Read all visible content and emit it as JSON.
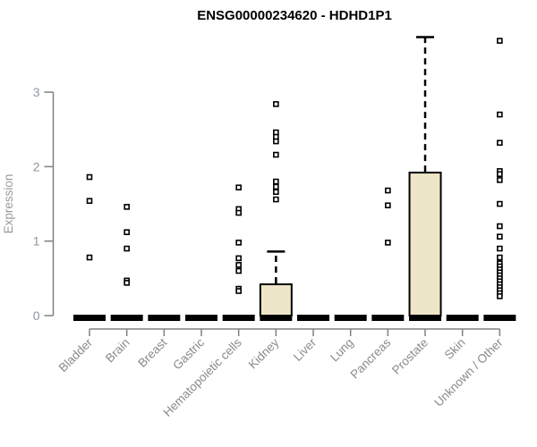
{
  "page": {
    "background": "#ffffff"
  },
  "chart_data": {
    "type": "boxplot",
    "title": "ENSG00000234620 - HDHD1P1",
    "ylabel": "Expression",
    "xlabel": "",
    "yticks": [
      0,
      1,
      2,
      3
    ],
    "ylim": [
      0,
      3.9
    ],
    "grid": "off",
    "legend": "none",
    "categories": [
      "Bladder",
      "Brain",
      "Breast",
      "Gastric",
      "Hematopoietic cells",
      "Kidney",
      "Liver",
      "Lung",
      "Pancreas",
      "Prostate",
      "Skin",
      "Unknown / Other"
    ],
    "series": [
      {
        "name": "Bladder",
        "median": 0,
        "q1": 0,
        "q3": 0,
        "whisker_low": 0,
        "whisker_high": 0,
        "outliers": [
          1.86,
          1.54,
          0.78
        ]
      },
      {
        "name": "Brain",
        "median": 0,
        "q1": 0,
        "q3": 0,
        "whisker_low": 0,
        "whisker_high": 0,
        "outliers": [
          1.46,
          1.12,
          0.9,
          0.47,
          0.44
        ]
      },
      {
        "name": "Breast",
        "median": 0,
        "q1": 0,
        "q3": 0,
        "whisker_low": 0,
        "whisker_high": 0,
        "outliers": []
      },
      {
        "name": "Gastric",
        "median": 0,
        "q1": 0,
        "q3": 0,
        "whisker_low": 0,
        "whisker_high": 0,
        "outliers": []
      },
      {
        "name": "Hematopoietic cells",
        "median": 0,
        "q1": 0,
        "q3": 0,
        "whisker_low": 0,
        "whisker_high": 0,
        "outliers": [
          1.72,
          1.43,
          1.38,
          0.98,
          0.77,
          0.68,
          0.6,
          0.36,
          0.33
        ]
      },
      {
        "name": "Kidney",
        "median": 0,
        "q1": 0,
        "q3": 0.42,
        "whisker_low": 0,
        "whisker_high": 0.86,
        "outliers": [
          2.84,
          2.46,
          2.4,
          2.34,
          2.16,
          1.8,
          1.73,
          1.66,
          1.56
        ]
      },
      {
        "name": "Liver",
        "median": 0,
        "q1": 0,
        "q3": 0,
        "whisker_low": 0,
        "whisker_high": 0,
        "outliers": []
      },
      {
        "name": "Lung",
        "median": 0,
        "q1": 0,
        "q3": 0,
        "whisker_low": 0,
        "whisker_high": 0,
        "outliers": []
      },
      {
        "name": "Pancreas",
        "median": 0,
        "q1": 0,
        "q3": 0,
        "whisker_low": 0,
        "whisker_high": 0,
        "outliers": [
          1.68,
          1.48,
          0.98
        ]
      },
      {
        "name": "Prostate",
        "median": 0,
        "q1": 0,
        "q3": 1.92,
        "whisker_low": 0,
        "whisker_high": 3.74,
        "outliers": []
      },
      {
        "name": "Skin",
        "median": 0,
        "q1": 0,
        "q3": 0,
        "whisker_low": 0,
        "whisker_high": 0,
        "outliers": []
      },
      {
        "name": "Unknown / Other",
        "median": 0,
        "q1": 0,
        "q3": 0,
        "whisker_low": 0,
        "whisker_high": 0,
        "outliers": [
          3.69,
          2.7,
          2.32,
          1.94,
          1.9,
          1.82,
          1.5,
          1.2,
          1.06,
          0.9,
          0.78,
          0.7,
          0.66,
          0.62,
          0.58,
          0.54,
          0.5,
          0.46,
          0.42,
          0.38,
          0.34,
          0.3,
          0.26
        ]
      }
    ],
    "colors": {
      "box_fill": "#EDE6C8",
      "box_stroke": "#000000",
      "median": "#000000",
      "whisker": "#000000",
      "outlier_stroke": "#000000",
      "outlier_fill": "#ffffff",
      "axis_line": "#808080",
      "tick_label": "#8f97a3",
      "category_label": "#8a8a8a",
      "title": "#000000",
      "ylabel": "#9a9a9a"
    }
  }
}
